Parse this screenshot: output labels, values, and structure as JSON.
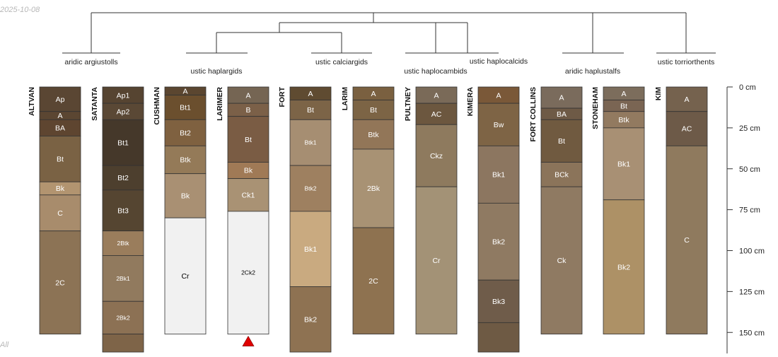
{
  "header": {
    "date": "2025-10-08",
    "corner_note": "All"
  },
  "depth_axis": {
    "unit": "cm",
    "max_depth": 160,
    "ticks": [
      {
        "depth": 0,
        "label": "0 cm"
      },
      {
        "depth": 25,
        "label": "25 cm"
      },
      {
        "depth": 50,
        "label": "50 cm"
      },
      {
        "depth": 75,
        "label": "75 cm"
      },
      {
        "depth": 100,
        "label": "100 cm"
      },
      {
        "depth": 125,
        "label": "125 cm"
      },
      {
        "depth": 150,
        "label": "150 cm"
      }
    ]
  },
  "taxa": [
    {
      "id": "argiustolls",
      "label": "aridic argiustolls"
    },
    {
      "id": "haplargids",
      "label": "ustic haplargids"
    },
    {
      "id": "calciargids",
      "label": "ustic calciargids"
    },
    {
      "id": "haplocambids",
      "label": "ustic haplocambids"
    },
    {
      "id": "haplocalcids",
      "label": "ustic haplocalcids"
    },
    {
      "id": "haplustalfs",
      "label": "aridic haplustalfs"
    },
    {
      "id": "torriorthents",
      "label": "ustic torriorthents"
    }
  ],
  "profiles": [
    {
      "name": "ALTVAN",
      "horizons": [
        {
          "name": "Ap",
          "top": 0,
          "bottom": 15,
          "color": "#5a4633"
        },
        {
          "name": "A",
          "top": 15,
          "bottom": 20,
          "color": "#5b4632"
        },
        {
          "name": "BA",
          "top": 20,
          "bottom": 30,
          "color": "#5e4530"
        },
        {
          "name": "Bt",
          "top": 30,
          "bottom": 58,
          "color": "#7a6244"
        },
        {
          "name": "Bk",
          "top": 58,
          "bottom": 66,
          "color": "#b29470"
        },
        {
          "name": "C",
          "top": 66,
          "bottom": 88,
          "color": "#a88c6c"
        },
        {
          "name": "2C",
          "top": 88,
          "bottom": 151,
          "color": "#8c7355"
        }
      ]
    },
    {
      "name": "SATANTA",
      "horizons": [
        {
          "name": "Ap1",
          "top": 0,
          "bottom": 10,
          "color": "#564431"
        },
        {
          "name": "Ap2",
          "top": 10,
          "bottom": 20,
          "color": "#5a4835"
        },
        {
          "name": "Bt1",
          "top": 20,
          "bottom": 48,
          "color": "#45382a"
        },
        {
          "name": "Bt2",
          "top": 48,
          "bottom": 63,
          "color": "#4d3f2e"
        },
        {
          "name": "Bt3",
          "top": 63,
          "bottom": 88,
          "color": "#554531"
        },
        {
          "name": "2Btk",
          "top": 88,
          "bottom": 103,
          "color": "#9a7d5c"
        },
        {
          "name": "2Bk1",
          "top": 103,
          "bottom": 131,
          "color": "#917a5e"
        },
        {
          "name": "2Bk2",
          "top": 131,
          "bottom": 151,
          "color": "#8c7154"
        },
        {
          "name": "",
          "top": 151,
          "bottom": 162,
          "color": "#7e6448"
        }
      ]
    },
    {
      "name": "CUSHMAN",
      "horizons": [
        {
          "name": "A",
          "top": 0,
          "bottom": 5,
          "color": "#5b4630"
        },
        {
          "name": "Bt1",
          "top": 5,
          "bottom": 20,
          "color": "#6b4f2e"
        },
        {
          "name": "Bt2",
          "top": 20,
          "bottom": 36,
          "color": "#7f6140"
        },
        {
          "name": "Btk",
          "top": 36,
          "bottom": 53,
          "color": "#947a58"
        },
        {
          "name": "Bk",
          "top": 53,
          "bottom": 80,
          "color": "#a99073"
        },
        {
          "name": "Cr",
          "top": 80,
          "bottom": 151,
          "color": "#f1f1f1"
        }
      ]
    },
    {
      "name": "LARIMER",
      "horizons": [
        {
          "name": "A",
          "top": 0,
          "bottom": 10,
          "color": "#756553"
        },
        {
          "name": "B",
          "top": 10,
          "bottom": 18,
          "color": "#7b6048"
        },
        {
          "name": "Bt",
          "top": 18,
          "bottom": 46,
          "color": "#7a5c44"
        },
        {
          "name": "Bk",
          "top": 46,
          "bottom": 56,
          "color": "#a07a56"
        },
        {
          "name": "Ck1",
          "top": 56,
          "bottom": 76,
          "color": "#a99274"
        },
        {
          "name": "2Ck2",
          "top": 76,
          "bottom": 151,
          "color": "#f1f1f1"
        }
      ]
    },
    {
      "name": "FORT",
      "horizons": [
        {
          "name": "A",
          "top": 0,
          "bottom": 8,
          "color": "#5f4b31"
        },
        {
          "name": "Bt",
          "top": 8,
          "bottom": 20,
          "color": "#7c6447"
        },
        {
          "name": "Btk1",
          "top": 20,
          "bottom": 48,
          "color": "#a68e72"
        },
        {
          "name": "Btk2",
          "top": 48,
          "bottom": 76,
          "color": "#9e8060"
        },
        {
          "name": "Bk1",
          "top": 76,
          "bottom": 122,
          "color": "#c9aa80"
        },
        {
          "name": "Bk2",
          "top": 122,
          "bottom": 162,
          "color": "#8e7252"
        }
      ]
    },
    {
      "name": "LARIM",
      "horizons": [
        {
          "name": "A",
          "top": 0,
          "bottom": 8,
          "color": "#7a6040"
        },
        {
          "name": "Bt",
          "top": 8,
          "bottom": 20,
          "color": "#7c6445"
        },
        {
          "name": "Btk",
          "top": 20,
          "bottom": 38,
          "color": "#927658"
        },
        {
          "name": "2Bk",
          "top": 38,
          "bottom": 86,
          "color": "#a89274"
        },
        {
          "name": "2C",
          "top": 86,
          "bottom": 151,
          "color": "#8e7250"
        }
      ]
    },
    {
      "name": "PULTNEY",
      "horizons": [
        {
          "name": "A",
          "top": 0,
          "bottom": 10,
          "color": "#7a6a58"
        },
        {
          "name": "AC",
          "top": 10,
          "bottom": 23,
          "color": "#6c573f"
        },
        {
          "name": "Ckz",
          "top": 23,
          "bottom": 61,
          "color": "#8e7a5e"
        },
        {
          "name": "Cr",
          "top": 61,
          "bottom": 151,
          "color": "#a39276"
        }
      ]
    },
    {
      "name": "KIMERA",
      "horizons": [
        {
          "name": "A",
          "top": 0,
          "bottom": 10,
          "color": "#7a5838"
        },
        {
          "name": "Bw",
          "top": 10,
          "bottom": 36,
          "color": "#7e6445"
        },
        {
          "name": "Bk1",
          "top": 36,
          "bottom": 71,
          "color": "#8c7660"
        },
        {
          "name": "Bk2",
          "top": 71,
          "bottom": 118,
          "color": "#8f7a62"
        },
        {
          "name": "Bk3",
          "top": 118,
          "bottom": 144,
          "color": "#6f5c4a"
        },
        {
          "name": "",
          "top": 144,
          "bottom": 162,
          "color": "#6e5a44"
        }
      ]
    },
    {
      "name": "FORT COLLINS",
      "horizons": [
        {
          "name": "A",
          "top": 0,
          "bottom": 13,
          "color": "#7a6b5c"
        },
        {
          "name": "BA",
          "top": 13,
          "bottom": 20,
          "color": "#6e5a46"
        },
        {
          "name": "Bt",
          "top": 20,
          "bottom": 46,
          "color": "#705a40"
        },
        {
          "name": "BCk",
          "top": 46,
          "bottom": 61,
          "color": "#8b745a"
        },
        {
          "name": "Ck",
          "top": 61,
          "bottom": 151,
          "color": "#8f7a62"
        }
      ]
    },
    {
      "name": "STONEHAM",
      "horizons": [
        {
          "name": "A",
          "top": 0,
          "bottom": 8,
          "color": "#7c6d5c"
        },
        {
          "name": "Bt",
          "top": 8,
          "bottom": 15,
          "color": "#7a6553"
        },
        {
          "name": "Btk",
          "top": 15,
          "bottom": 25,
          "color": "#927a60"
        },
        {
          "name": "Bk1",
          "top": 25,
          "bottom": 69,
          "color": "#a89074"
        },
        {
          "name": "Bk2",
          "top": 69,
          "bottom": 151,
          "color": "#ad9166"
        }
      ]
    },
    {
      "name": "KIM",
      "horizons": [
        {
          "name": "A",
          "top": 0,
          "bottom": 15,
          "color": "#75624e"
        },
        {
          "name": "AC",
          "top": 15,
          "bottom": 36,
          "color": "#6d5a48"
        },
        {
          "name": "C",
          "top": 36,
          "bottom": 151,
          "color": "#8f7a5e"
        }
      ]
    }
  ],
  "markers": [
    {
      "profile": "LARIMER",
      "type": "depth-limit-triangle",
      "color": "#e00000"
    }
  ],
  "colors": {
    "outline": "#333333",
    "label_light": "#ffffff",
    "label_dark": "#000000",
    "tree_line": "#333333"
  }
}
